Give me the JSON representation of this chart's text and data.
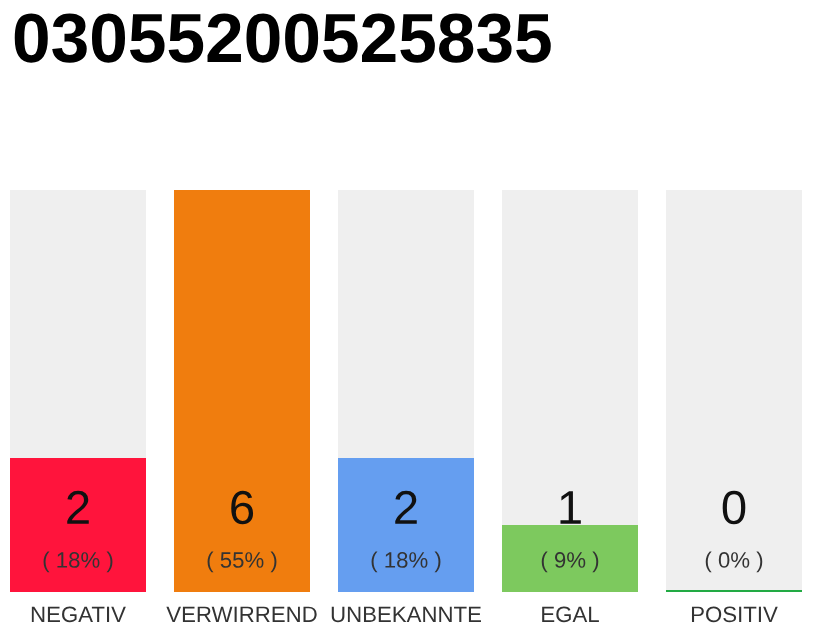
{
  "chart_data": {
    "type": "bar",
    "title": "03055200525835",
    "categories": [
      "NEGATIV",
      "VERWIRREND",
      "UNBEKANNTE",
      "EGAL",
      "POSITIV"
    ],
    "values": [
      2,
      6,
      2,
      1,
      0
    ],
    "colors": [
      "#ff143c",
      "#f07d0e",
      "#659ef0",
      "#7dc95e",
      "#22aa44"
    ],
    "value_labels": [
      "2\n( 18% )",
      "6\n( 55% )",
      "2\n( 18% )",
      "1\n( 9% )",
      "0\n( 0% )"
    ],
    "tick_labels": "x"
  }
}
